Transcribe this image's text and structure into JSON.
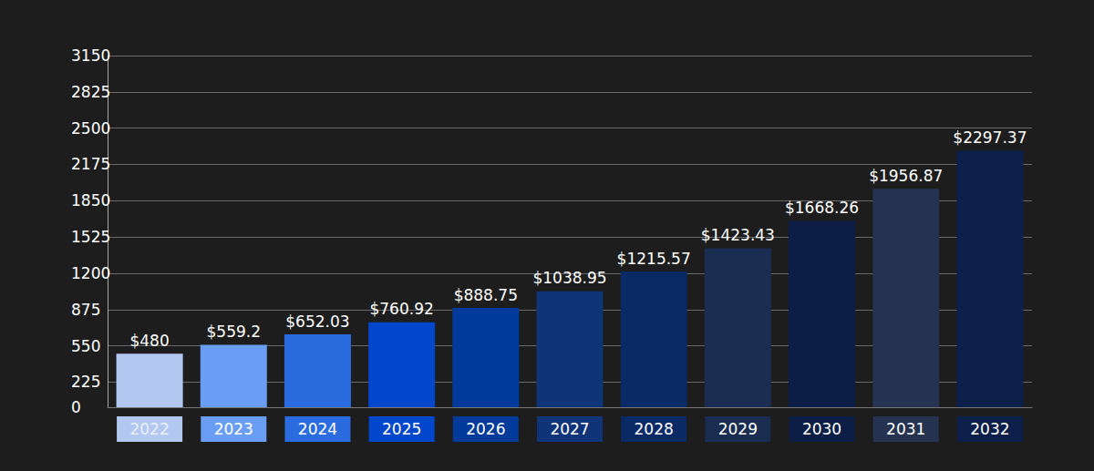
{
  "chart_data": {
    "type": "bar",
    "categories": [
      "2022",
      "2023",
      "2024",
      "2025",
      "2026",
      "2027",
      "2028",
      "2029",
      "2030",
      "2031",
      "2032"
    ],
    "values": [
      480,
      559.2,
      652.03,
      760.92,
      888.75,
      1038.95,
      1215.57,
      1423.43,
      1668.26,
      1956.87,
      2297.37
    ],
    "value_labels": [
      "$480",
      "$559.2",
      "$652.03",
      "$760.92",
      "$888.75",
      "$1038.95",
      "$1215.57",
      "$1423.43",
      "$1668.26",
      "$1956.87",
      "$2297.37"
    ],
    "colors": [
      "#b3c8f0",
      "#6a9ef5",
      "#2a6cdf",
      "#0047cc",
      "#003a9a",
      "#0f3478",
      "#0a2a66",
      "#1a2d50",
      "#0c1e45",
      "#263350",
      "#0c1f4a"
    ],
    "ylim": [
      0,
      3150
    ],
    "yticks": [
      0,
      225,
      550,
      875,
      1200,
      1525,
      1850,
      2175,
      2500,
      2825,
      3150
    ],
    "grid": true,
    "data_labels": true
  }
}
